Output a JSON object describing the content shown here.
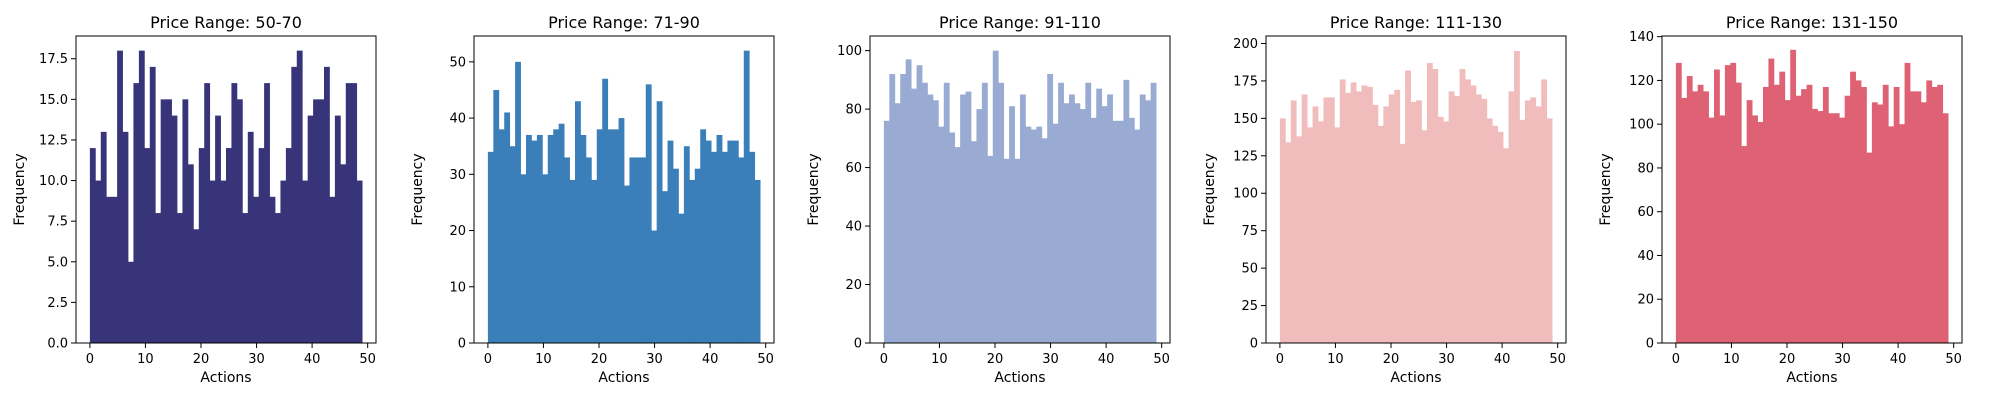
{
  "chart_data": [
    {
      "type": "bar",
      "title": "Price Range: 50-70",
      "xlabel": "Actions",
      "ylabel": "Frequency",
      "color": "#383479",
      "xlim": [
        -2.5,
        51.5
      ],
      "ylim": [
        0,
        18.9
      ],
      "xticks": [
        "0",
        "10",
        "20",
        "30",
        "40",
        "50"
      ],
      "yticks": [
        "0.0",
        "2.5",
        "5.0",
        "7.5",
        "10.0",
        "12.5",
        "15.0",
        "17.5"
      ],
      "bin_start": 0,
      "bin_width": 0.98,
      "values": [
        12,
        10,
        13,
        9,
        9,
        18,
        13,
        5,
        16,
        18,
        12,
        17,
        8,
        15,
        15,
        14,
        8,
        15,
        11,
        7,
        12,
        16,
        10,
        14,
        10,
        12,
        16,
        15,
        8,
        13,
        9,
        12,
        16,
        9,
        8,
        10,
        12,
        17,
        18,
        10,
        14,
        15,
        15,
        17,
        9,
        14,
        11,
        16,
        16,
        10
      ]
    },
    {
      "type": "bar",
      "title": "Price Range: 71-90",
      "xlabel": "Actions",
      "ylabel": "Frequency",
      "color": "#3a7fb9",
      "xlim": [
        -2.5,
        51.5
      ],
      "ylim": [
        0,
        54.6
      ],
      "xticks": [
        "0",
        "10",
        "20",
        "30",
        "40",
        "50"
      ],
      "yticks": [
        "0",
        "10",
        "20",
        "30",
        "40",
        "50"
      ],
      "bin_start": 0,
      "bin_width": 0.98,
      "values": [
        34,
        45,
        38,
        41,
        35,
        50,
        30,
        37,
        36,
        37,
        30,
        37,
        38,
        39,
        33,
        29,
        43,
        37,
        33,
        29,
        38,
        47,
        38,
        38,
        40,
        28,
        33,
        33,
        33,
        46,
        20,
        43,
        27,
        36,
        31,
        23,
        35,
        29,
        31,
        38,
        36,
        34,
        37,
        34,
        36,
        36,
        33,
        52,
        34,
        29
      ]
    },
    {
      "type": "bar",
      "title": "Price Range: 91-110",
      "xlabel": "Actions",
      "ylabel": "Frequency",
      "color": "#99abd2",
      "xlim": [
        -2.5,
        51.5
      ],
      "ylim": [
        0,
        105
      ],
      "xticks": [
        "0",
        "10",
        "20",
        "30",
        "40",
        "50"
      ],
      "yticks": [
        "0",
        "20",
        "40",
        "60",
        "80",
        "100"
      ],
      "bin_start": 0,
      "bin_width": 0.98,
      "values": [
        76,
        92,
        82,
        92,
        97,
        87,
        95,
        89,
        85,
        83,
        74,
        89,
        72,
        67,
        85,
        86,
        69,
        80,
        89,
        64,
        100,
        89,
        63,
        81,
        63,
        85,
        74,
        73,
        74,
        70,
        92,
        75,
        89,
        82,
        85,
        82,
        80,
        89,
        77,
        87,
        81,
        85,
        76,
        76,
        90,
        77,
        73,
        85,
        83,
        89
      ]
    },
    {
      "type": "bar",
      "title": "Price Range: 111-130",
      "xlabel": "Actions",
      "ylabel": "Frequency",
      "color": "#f0bdbc",
      "xlim": [
        -2.5,
        51.5
      ],
      "ylim": [
        0,
        205
      ],
      "xticks": [
        "0",
        "10",
        "20",
        "30",
        "40",
        "50"
      ],
      "yticks": [
        "0",
        "25",
        "50",
        "75",
        "100",
        "125",
        "150",
        "175",
        "200"
      ],
      "bin_start": 0,
      "bin_width": 0.98,
      "values": [
        150,
        134,
        162,
        138,
        166,
        144,
        158,
        148,
        164,
        164,
        144,
        176,
        167,
        174,
        168,
        172,
        171,
        159,
        145,
        158,
        166,
        169,
        133,
        182,
        161,
        162,
        142,
        187,
        183,
        151,
        148,
        168,
        165,
        183,
        176,
        172,
        166,
        163,
        150,
        145,
        141,
        130,
        168,
        195,
        149,
        162,
        164,
        158,
        176,
        150
      ]
    },
    {
      "type": "bar",
      "title": "Price Range: 131-150",
      "xlabel": "Actions",
      "ylabel": "Frequency",
      "color": "#de6274",
      "xlim": [
        -2.5,
        51.5
      ],
      "ylim": [
        0,
        140.3
      ],
      "xticks": [
        "0",
        "10",
        "20",
        "30",
        "40",
        "50"
      ],
      "yticks": [
        "0",
        "20",
        "40",
        "60",
        "80",
        "100",
        "120",
        "140"
      ],
      "bin_start": 0,
      "bin_width": 0.98,
      "values": [
        128,
        112,
        122,
        115,
        118,
        115,
        103,
        125,
        104,
        127,
        128,
        119,
        90,
        111,
        104,
        101,
        117,
        130,
        118,
        124,
        111,
        134,
        113,
        116,
        118,
        107,
        106,
        117,
        105,
        105,
        103,
        113,
        124,
        120,
        117,
        87,
        110,
        109,
        118,
        99,
        117,
        100,
        128,
        115,
        115,
        110,
        120,
        117,
        118,
        105
      ]
    }
  ]
}
